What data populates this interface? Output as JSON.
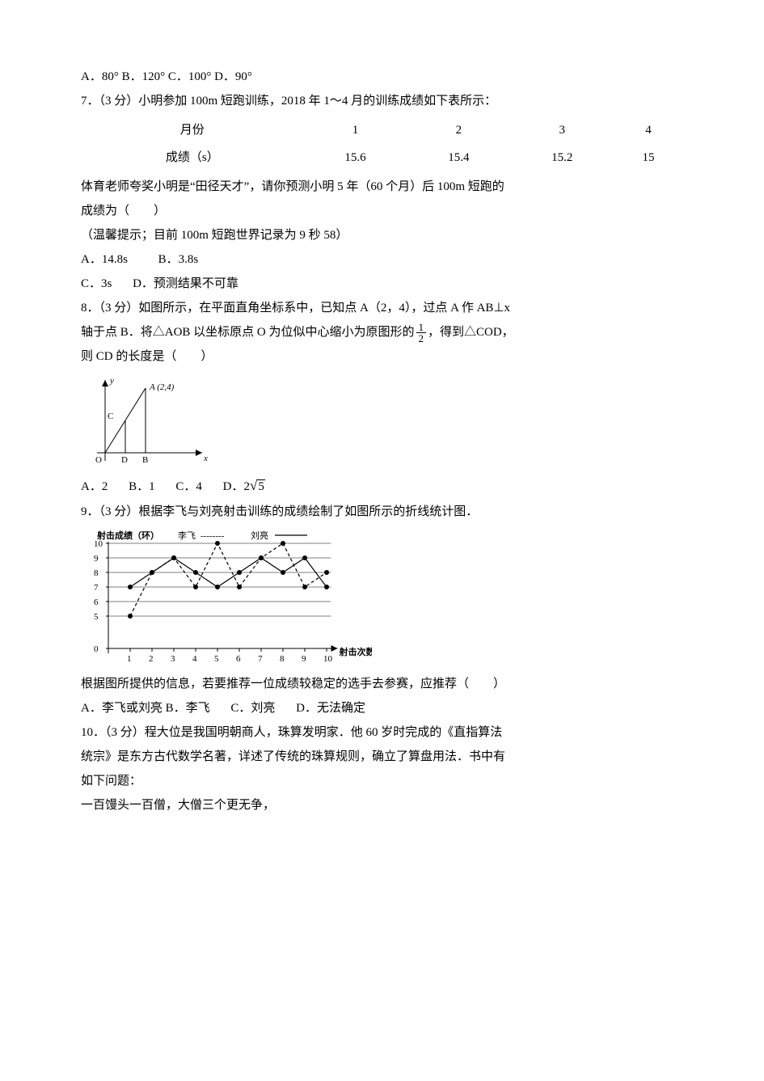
{
  "q6_options": "A．80°  B．120° C．100° D．90°",
  "q7": {
    "stem": "7．（3 分）小明参加 100m 短跑训练，2018 年 1～4 月的训练成绩如下表所示：",
    "table": {
      "row1_label": "月份",
      "row2_label": "成绩（s）",
      "months": [
        "1",
        "2",
        "3",
        "4"
      ],
      "scores": [
        "15.6",
        "15.4",
        "15.2",
        "15"
      ]
    },
    "line2": "体育老师夸奖小明是“田径天才”，请你预测小明 5 年（60 个月）后 100m 短跑的",
    "line3": "成绩为（　　）",
    "hint": "（温馨提示；目前 100m 短跑世界记录为 9 秒 58）",
    "optA": "A．14.8s",
    "optB": "B．3.8s",
    "optC": "C．3s",
    "optD": "D．预测结果不可靠"
  },
  "q8": {
    "line1": "8．（3 分）如图所示，在平面直角坐标系中，已知点 A（2，4），过点 A 作 AB⊥x",
    "line2a": "轴于点 B．将△AOB 以坐标原点 O 为位似中心缩小为原图形的",
    "line2b": "，得到△COD，",
    "frac_num": "1",
    "frac_den": "2",
    "line3": "则 CD 的长度是（　　）",
    "point_label": "A (2,4)",
    "axis_x": "x",
    "axis_y": "y",
    "O": "O",
    "D": "D",
    "B": "B",
    "C": "C",
    "optA": "A．2",
    "optB": "B．1",
    "optC": "C．4",
    "optD_pre": "D．2",
    "optD_sqrt": "5"
  },
  "q9": {
    "stem": "9．（3 分）根据李飞与刘亮射击训练的成绩绘制了如图所示的折线统计图．",
    "chart": {
      "y_title": "射击成绩（环）",
      "legend_lifei": "李飞",
      "legend_dash": "--------",
      "legend_liuliang": "刘亮",
      "legend_solid": "———",
      "x_title": "射击次数",
      "y_ticks": [
        "0",
        "5",
        "6",
        "7",
        "8",
        "9",
        "10"
      ],
      "x_ticks": [
        "1",
        "2",
        "3",
        "4",
        "5",
        "6",
        "7",
        "8",
        "9",
        "10"
      ],
      "series_lifei": [
        5,
        8,
        9,
        7,
        10,
        7,
        9,
        10,
        7,
        8
      ],
      "series_liuliang": [
        7,
        8,
        9,
        8,
        7,
        8,
        9,
        8,
        9,
        7
      ]
    },
    "line2": "根据图所提供的信息，若要推荐一位成绩较稳定的选手去参赛，应推荐（　　）",
    "optA": "A．李飞或刘亮",
    "optB": "B．李飞",
    "optC": "C．刘亮",
    "optD": "D．无法确定"
  },
  "q10": {
    "line1": "10．（3 分）程大位是我国明朝商人，珠算发明家．他 60 岁时完成的《直指算法",
    "line2": "统宗》是东方古代数学名著，详述了传统的珠算规则，确立了算盘用法．书中有",
    "line3": "如下问题：",
    "line4": "一百馒头一百僧，大僧三个更无争，"
  }
}
